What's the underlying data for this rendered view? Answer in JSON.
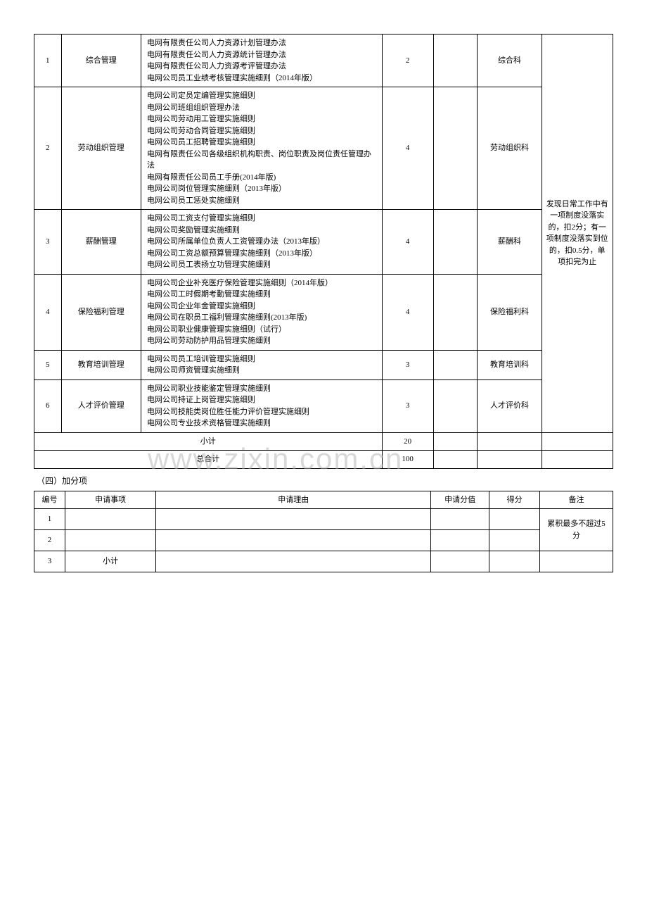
{
  "table1": {
    "rows": [
      {
        "num": "1",
        "category": "综合管理",
        "desc": [
          "电网有限责任公司人力资源计划管理办法",
          "电网有限责任公司人力资源统计管理办法",
          "电网有限责任公司人力资源考评管理办法",
          "电网公司员工业绩考核管理实施细则（2014年版）"
        ],
        "score": "2",
        "actual": "",
        "dept": "综合科"
      },
      {
        "num": "2",
        "category": "劳动组织管理",
        "desc": [
          "电网公司定员定编管理实施细则",
          "电网公司班组组织管理办法",
          "电网公司劳动用工管理实施细则",
          "电网公司劳动合同管理实施细则",
          "电网公司员工招聘管理实施细则",
          "电网有限责任公司各级组织机构职责、岗位职责及岗位责任管理办法",
          "电网有限责任公司员工手册(2014年版)",
          "电网公司岗位管理实施细则（2013年版）",
          "电网公司员工惩处实施细则"
        ],
        "score": "4",
        "actual": "",
        "dept": "劳动组织科"
      },
      {
        "num": "3",
        "category": "薪酬管理",
        "desc": [
          "电网公司工资支付管理实施细则",
          "电网公司奖励管理实施细则",
          "电网公司所属单位负责人工资管理办法（2013年版）",
          "电网公司工资总额预算管理实施细则（2013年版）",
          "电网公司员工表扬立功管理实施细则"
        ],
        "score": "4",
        "actual": "",
        "dept": "薪酬科"
      },
      {
        "num": "4",
        "category": "保险福利管理",
        "desc": [
          "电网公司企业补充医疗保险管理实施细则（2014年版）",
          "电网公司工时假期考勤管理实施细则",
          "电网公司企业年金管理实施细则",
          "电网公司在职员工福利管理实施细则(2013年版)",
          "电网公司职业健康管理实施细则（试行）",
          "电网公司劳动防护用品管理实施细则"
        ],
        "score": "4",
        "actual": "",
        "dept": "保险福利科"
      },
      {
        "num": "5",
        "category": "教育培训管理",
        "desc": [
          "电网公司员工培训管理实施细则",
          "电网公司师资管理实施细则"
        ],
        "score": "3",
        "actual": "",
        "dept": "教育培训科"
      },
      {
        "num": "6",
        "category": "人才评价管理",
        "desc": [
          "电网公司职业技能鉴定管理实施细则",
          "电网公司持证上岗管理实施细则",
          "电网公司技能类岗位胜任能力评价管理实施细则",
          "电网公司专业技术资格管理实施细则"
        ],
        "score": "3",
        "actual": "",
        "dept": "人才评价科"
      }
    ],
    "note": "发现日常工作中有一项制度没落实的，扣2分；有一项制度没落实到位的，扣0.5分，单项扣完为止",
    "subtotal_label": "小计",
    "subtotal_score": "20",
    "grandtotal_label": "总合计",
    "grandtotal_score": "100"
  },
  "bonus_section": {
    "title": "（四）加分项",
    "headers": {
      "num": "编号",
      "item": "申请事项",
      "reason": "申请理由",
      "reqscore": "申请分值",
      "score": "得分",
      "remark": "备注"
    },
    "rows": [
      {
        "num": "1",
        "item": "",
        "reason": "",
        "reqscore": "",
        "score": ""
      },
      {
        "num": "2",
        "item": "",
        "reason": "",
        "reqscore": "",
        "score": ""
      },
      {
        "num": "3",
        "item": "小计",
        "reason": "",
        "reqscore": "",
        "score": ""
      }
    ],
    "remark_text": "累积最多不超过5分"
  },
  "watermark": "www.zixin.com.cn"
}
